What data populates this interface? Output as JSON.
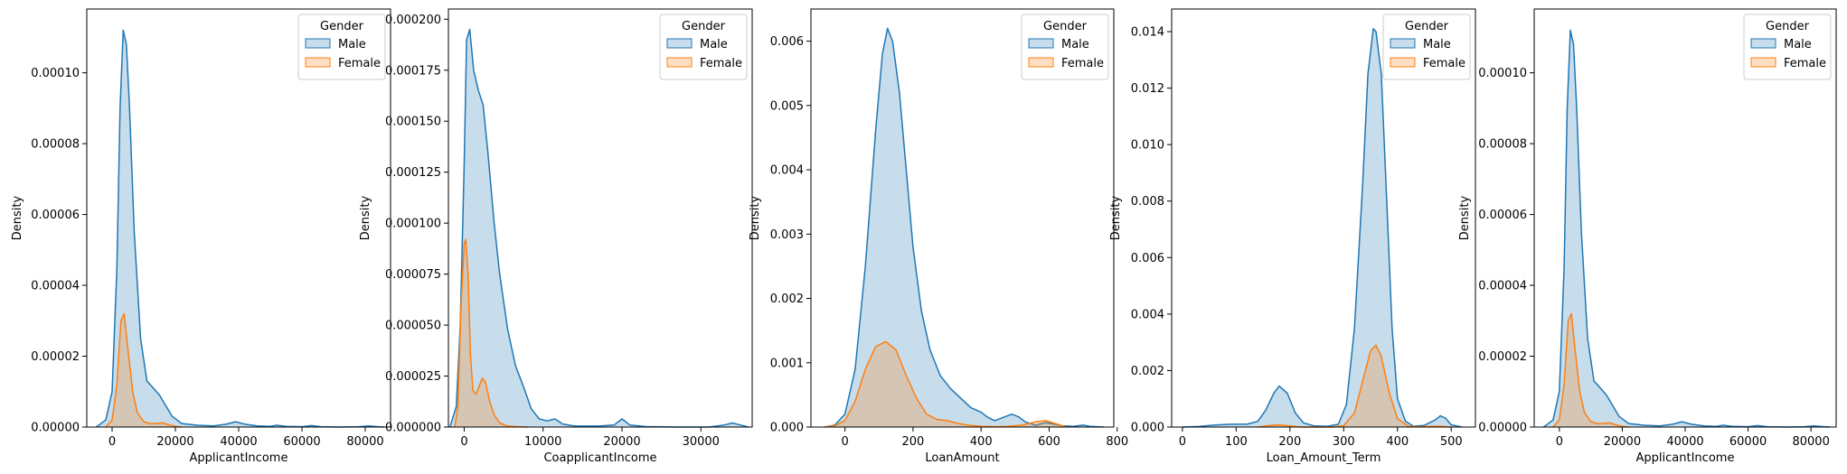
{
  "chart_data": [
    {
      "type": "area",
      "xlabel": "ApplicantIncome",
      "ylabel": "Density",
      "xlim": [
        -8000,
        88000
      ],
      "ylim": [
        0,
        0.000118
      ],
      "xticks": [
        0,
        20000,
        40000,
        60000,
        80000
      ],
      "yticks": [
        0,
        2e-05,
        4e-05,
        6e-05,
        8e-05,
        0.0001
      ],
      "ytick_labels": [
        "0.00000",
        "0.00002",
        "0.00004",
        "0.00006",
        "0.00008",
        "0.00010"
      ],
      "legend": {
        "title": "Gender",
        "placement": "top-right"
      },
      "series": [
        {
          "name": "Male",
          "color": "#1f77b4",
          "x": [
            -5000,
            -2000,
            0,
            1500,
            2500,
            3500,
            4500,
            5500,
            7000,
            9000,
            11000,
            13000,
            15000,
            17000,
            19000,
            22000,
            27000,
            32000,
            36000,
            39000,
            42000,
            46000,
            50000,
            52000,
            55000,
            60000,
            63000,
            66000,
            72000,
            78000,
            81000,
            84000,
            86000
          ],
          "y": [
            0,
            2e-06,
            1e-05,
            4.5e-05,
            9e-05,
            0.000112,
            0.000108,
            9e-05,
            5.5e-05,
            2.5e-05,
            1.3e-05,
            1.1e-05,
            9e-06,
            6e-06,
            3e-06,
            1e-06,
            5e-07,
            3e-07,
            8e-07,
            1.5e-06,
            8e-07,
            3e-07,
            2e-07,
            5e-07,
            2e-07,
            1e-07,
            4e-07,
            1e-07,
            0,
            1e-07,
            3e-07,
            1e-07,
            0
          ]
        },
        {
          "name": "Female",
          "color": "#ff7f0e",
          "x": [
            -2000,
            0,
            1500,
            2800,
            3800,
            5000,
            6500,
            8000,
            10000,
            12000,
            14000,
            16000,
            18000,
            20000,
            22000
          ],
          "y": [
            0,
            2e-06,
            1.2e-05,
            3e-05,
            3.2e-05,
            2.2e-05,
            1e-05,
            4e-06,
            1.5e-06,
            1e-06,
            1e-06,
            1.2e-06,
            6e-07,
            2e-07,
            0
          ]
        }
      ]
    },
    {
      "type": "area",
      "xlabel": "CoapplicantIncome",
      "ylabel": "Density",
      "xlim": [
        -2000,
        36500
      ],
      "ylim": [
        0,
        0.000205
      ],
      "xticks": [
        0,
        10000,
        20000,
        30000
      ],
      "yticks": [
        0,
        2.5e-05,
        5e-05,
        7.5e-05,
        0.0001,
        0.000125,
        0.00015,
        0.000175,
        0.0002
      ],
      "ytick_labels": [
        "0.000000",
        "0.000025",
        "0.000050",
        "0.000075",
        "0.000100",
        "0.000125",
        "0.000150",
        "0.000175",
        "0.000200"
      ],
      "legend": {
        "title": "Gender",
        "placement": "top-right"
      },
      "series": [
        {
          "name": "Male",
          "color": "#1f77b4",
          "x": [
            -1800,
            -1000,
            -500,
            0,
            300,
            700,
            1200,
            1800,
            2400,
            3000,
            3800,
            4500,
            5500,
            6500,
            7500,
            8500,
            9500,
            10500,
            11500,
            12500,
            14000,
            17000,
            19000,
            20000,
            21000,
            23000,
            27000,
            31000,
            33000,
            34000,
            35000,
            36000
          ],
          "y": [
            0,
            1e-05,
            5e-05,
            0.00013,
            0.00019,
            0.000195,
            0.000175,
            0.000165,
            0.000158,
            0.000135,
            0.0001,
            7.5e-05,
            4.8e-05,
            3e-05,
            2e-05,
            9e-06,
            4e-06,
            3e-06,
            4e-06,
            1.5e-06,
            5e-07,
            5e-07,
            1e-06,
            4e-06,
            1e-06,
            2e-07,
            0,
            0,
            1e-06,
            2e-06,
            1e-06,
            0
          ]
        },
        {
          "name": "Female",
          "color": "#ff7f0e",
          "x": [
            -1200,
            -800,
            -400,
            0,
            200,
            500,
            800,
            1100,
            1500,
            1900,
            2300,
            2700,
            3200,
            3800,
            4500,
            5500,
            6500,
            8000
          ],
          "y": [
            0,
            1e-05,
            6e-05,
            9e-05,
            9.2e-05,
            7.5e-05,
            3.5e-05,
            1.8e-05,
            1.6e-05,
            2e-05,
            2.4e-05,
            2.2e-05,
            1.3e-05,
            6e-06,
            2e-06,
            5e-07,
            2e-07,
            0
          ]
        }
      ]
    },
    {
      "type": "area",
      "xlabel": "LoanAmount",
      "ylabel": "Density",
      "xlim": [
        -100,
        790
      ],
      "ylim": [
        0,
        0.0065
      ],
      "xticks": [
        0,
        200,
        400,
        600,
        800
      ],
      "yticks": [
        0,
        0.001,
        0.002,
        0.003,
        0.004,
        0.005,
        0.006
      ],
      "ytick_labels": [
        "0.000",
        "0.001",
        "0.002",
        "0.003",
        "0.004",
        "0.005",
        "0.006"
      ],
      "legend": {
        "title": "Gender",
        "placement": "top-right"
      },
      "series": [
        {
          "name": "Male",
          "color": "#1f77b4",
          "x": [
            -60,
            -30,
            0,
            30,
            60,
            90,
            110,
            125,
            140,
            160,
            180,
            200,
            225,
            250,
            280,
            310,
            340,
            370,
            400,
            420,
            440,
            470,
            490,
            510,
            530,
            560,
            590,
            610,
            640,
            670,
            700,
            720,
            760
          ],
          "y": [
            0,
            3e-05,
            0.0002,
            0.0009,
            0.0025,
            0.0046,
            0.0058,
            0.0062,
            0.006,
            0.0052,
            0.004,
            0.0028,
            0.0018,
            0.0012,
            0.0008,
            0.0006,
            0.00045,
            0.0003,
            0.00023,
            0.00015,
            0.0001,
            0.00016,
            0.0002,
            0.00016,
            8e-05,
            3e-05,
            7e-05,
            5e-05,
            2e-05,
            1e-05,
            3e-05,
            1e-05,
            0
          ]
        },
        {
          "name": "Female",
          "color": "#ff7f0e",
          "x": [
            -60,
            -30,
            0,
            30,
            60,
            90,
            120,
            150,
            180,
            210,
            240,
            270,
            300,
            330,
            360,
            400,
            440,
            480,
            520,
            560,
            590,
            620,
            650
          ],
          "y": [
            0,
            2e-05,
            0.0001,
            0.0004,
            0.0009,
            0.00125,
            0.00133,
            0.0012,
            0.0008,
            0.00045,
            0.0002,
            0.00012,
            0.0001,
            6e-05,
            3e-05,
            1e-05,
            5e-06,
            1e-05,
            3e-05,
            8e-05,
            0.0001,
            5e-05,
            0
          ]
        }
      ]
    },
    {
      "type": "area",
      "xlabel": "Loan_Amount_Term",
      "ylabel": "Density",
      "xlim": [
        -20,
        545
      ],
      "ylim": [
        0,
        0.0148
      ],
      "xticks": [
        0,
        100,
        200,
        300,
        400,
        500
      ],
      "yticks": [
        0,
        0.002,
        0.004,
        0.006,
        0.008,
        0.01,
        0.012,
        0.014
      ],
      "ytick_labels": [
        "0.000",
        "0.002",
        "0.004",
        "0.006",
        "0.008",
        "0.010",
        "0.012",
        "0.014"
      ],
      "legend": {
        "title": "Gender",
        "placement": "top-right"
      },
      "series": [
        {
          "name": "Male",
          "color": "#1f77b4",
          "x": [
            0,
            30,
            60,
            90,
            120,
            140,
            155,
            170,
            180,
            195,
            210,
            225,
            245,
            270,
            290,
            305,
            320,
            335,
            345,
            355,
            360,
            370,
            380,
            390,
            400,
            415,
            430,
            450,
            470,
            480,
            490,
            500,
            520
          ],
          "y": [
            0,
            2e-05,
            7e-05,
            0.0001,
            0.0001,
            0.0002,
            0.0006,
            0.0012,
            0.00145,
            0.0012,
            0.0005,
            0.00015,
            4e-05,
            3e-05,
            0.0001,
            0.0008,
            0.0035,
            0.0085,
            0.0125,
            0.0141,
            0.014,
            0.0125,
            0.008,
            0.0035,
            0.001,
            0.0002,
            3e-05,
            6e-05,
            0.00025,
            0.0004,
            0.0003,
            8e-05,
            0
          ]
        },
        {
          "name": "Female",
          "color": "#ff7f0e",
          "x": [
            140,
            160,
            180,
            200,
            220,
            280,
            300,
            320,
            335,
            350,
            360,
            370,
            385,
            400,
            420,
            440,
            460,
            480,
            500
          ],
          "y": [
            0,
            5e-05,
            8e-05,
            4e-05,
            0,
            0,
            5e-05,
            0.0005,
            0.0016,
            0.0027,
            0.0029,
            0.0025,
            0.0012,
            0.0003,
            3e-05,
            1e-05,
            2e-05,
            3e-05,
            0
          ]
        }
      ]
    },
    {
      "type": "area",
      "xlabel": "ApplicantIncome",
      "ylabel": "Density",
      "xlim": [
        -8000,
        88000
      ],
      "ylim": [
        0,
        0.000118
      ],
      "xticks": [
        0,
        20000,
        40000,
        60000,
        80000
      ],
      "yticks": [
        0,
        2e-05,
        4e-05,
        6e-05,
        8e-05,
        0.0001
      ],
      "ytick_labels": [
        "0.00000",
        "0.00002",
        "0.00004",
        "0.00006",
        "0.00008",
        "0.00010"
      ],
      "legend": {
        "title": "Gender",
        "placement": "top-right"
      },
      "series": [
        {
          "name": "Male",
          "color": "#1f77b4",
          "x": [
            -5000,
            -2000,
            0,
            1500,
            2500,
            3500,
            4500,
            5500,
            7000,
            9000,
            11000,
            13000,
            15000,
            17000,
            19000,
            22000,
            27000,
            32000,
            36000,
            39000,
            42000,
            46000,
            50000,
            52000,
            55000,
            60000,
            63000,
            66000,
            72000,
            78000,
            81000,
            84000,
            86000
          ],
          "y": [
            0,
            2e-06,
            1e-05,
            4.5e-05,
            9e-05,
            0.000112,
            0.000108,
            9e-05,
            5.5e-05,
            2.5e-05,
            1.3e-05,
            1.1e-05,
            9e-06,
            6e-06,
            3e-06,
            1e-06,
            5e-07,
            3e-07,
            8e-07,
            1.5e-06,
            8e-07,
            3e-07,
            2e-07,
            5e-07,
            2e-07,
            1e-07,
            4e-07,
            1e-07,
            0,
            1e-07,
            3e-07,
            1e-07,
            0
          ]
        },
        {
          "name": "Female",
          "color": "#ff7f0e",
          "x": [
            -2000,
            0,
            1500,
            2800,
            3800,
            5000,
            6500,
            8000,
            10000,
            12000,
            14000,
            16000,
            18000,
            20000,
            22000
          ],
          "y": [
            0,
            2e-06,
            1.2e-05,
            3e-05,
            3.2e-05,
            2.2e-05,
            1e-05,
            4e-06,
            1.5e-06,
            1e-06,
            1e-06,
            1.2e-06,
            6e-07,
            2e-07,
            0
          ]
        }
      ]
    }
  ]
}
